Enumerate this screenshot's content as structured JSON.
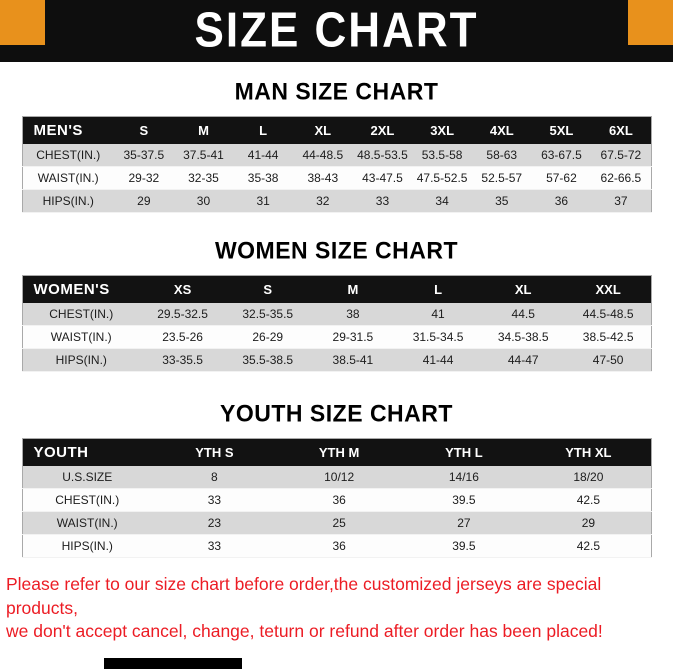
{
  "banner": {
    "title": "SIZE CHART"
  },
  "sections": [
    {
      "title": "MAN SIZE CHART",
      "table": {
        "headers": [
          "MEN'S",
          "S",
          "M",
          "L",
          "XL",
          "2XL",
          "3XL",
          "4XL",
          "5XL",
          "6XL"
        ],
        "rows": [
          [
            "CHEST(IN.)",
            "35-37.5",
            "37.5-41",
            "41-44",
            "44-48.5",
            "48.5-53.5",
            "53.5-58",
            "58-63",
            "63-67.5",
            "67.5-72"
          ],
          [
            "WAIST(IN.)",
            "29-32",
            "32-35",
            "35-38",
            "38-43",
            "43-47.5",
            "47.5-52.5",
            "52.5-57",
            "57-62",
            "62-66.5"
          ],
          [
            "HIPS(IN.)",
            "29",
            "30",
            "31",
            "32",
            "33",
            "34",
            "35",
            "36",
            "37"
          ]
        ]
      }
    },
    {
      "title": "WOMEN SIZE CHART",
      "table": {
        "headers": [
          "WOMEN'S",
          "XS",
          "S",
          "M",
          "L",
          "XL",
          "XXL"
        ],
        "rows": [
          [
            "CHEST(IN.)",
            "29.5-32.5",
            "32.5-35.5",
            "38",
            "41",
            "44.5",
            "44.5-48.5"
          ],
          [
            "WAIST(IN.)",
            "23.5-26",
            "26-29",
            "29-31.5",
            "31.5-34.5",
            "34.5-38.5",
            "38.5-42.5"
          ],
          [
            "HIPS(IN.)",
            "33-35.5",
            "35.5-38.5",
            "38.5-41",
            "41-44",
            "44-47",
            "47-50"
          ]
        ]
      }
    },
    {
      "title": "YOUTH SIZE CHART",
      "table": {
        "headers": [
          "YOUTH",
          "YTH S",
          "YTH M",
          "YTH L",
          "YTH XL"
        ],
        "rows": [
          [
            "U.S.SIZE",
            "8",
            "10/12",
            "14/16",
            "18/20"
          ],
          [
            "CHEST(IN.)",
            "33",
            "36",
            "39.5",
            "42.5"
          ],
          [
            "WAIST(IN.)",
            "23",
            "25",
            "27",
            "29"
          ],
          [
            "HIPS(IN.)",
            "33",
            "36",
            "39.5",
            "42.5"
          ]
        ]
      }
    }
  ],
  "footer": {
    "lines": [
      "Please refer to our size chart before order,the customized jerseys are special products,",
      "we don't accept cancel, change, teturn or refund after order has been placed!"
    ]
  },
  "colors": {
    "accent_orange": "#E8911C",
    "banner_black": "#0E0E0E",
    "row_alt_gray": "#D8D8D8",
    "footer_red": "#EC1C24"
  }
}
